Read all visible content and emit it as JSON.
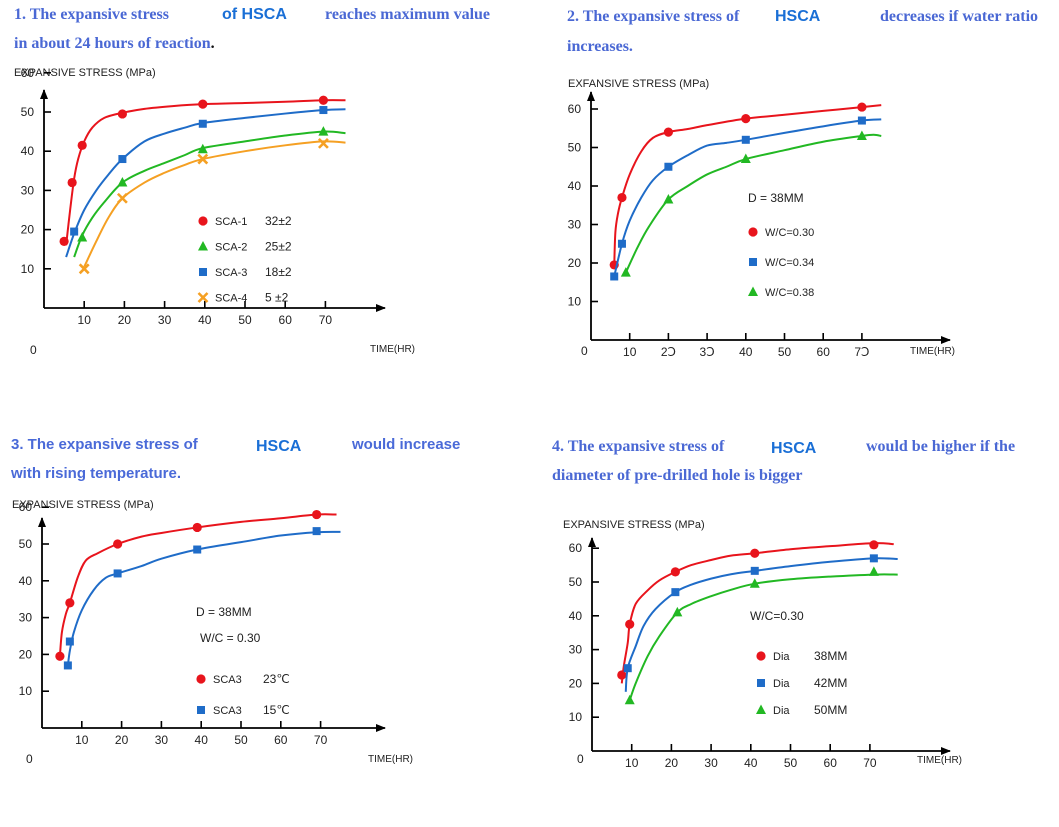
{
  "sections": [
    {
      "heading": {
        "part1": "1. The expansive stress",
        "hsca": "of HSCA",
        "part2": "reaches maximum value",
        "line2": "in about 24 hours of reaction",
        "line2_end": "."
      }
    },
    {
      "heading": {
        "part1": "2. The expansive stress of",
        "hsca": "HSCA",
        "part2": "decreases if water ratio",
        "line2": "increases."
      }
    },
    {
      "heading": {
        "part1": "3. The expansive stress of",
        "hsca": "HSCA",
        "part2": "would increase",
        "line2": "with rising temperature."
      }
    },
    {
      "heading": {
        "part1": "4. The expansive stress of",
        "hsca": "HSCA",
        "part2": "would be higher if the",
        "line2": "diameter of pre-drilled hole is bigger"
      }
    }
  ],
  "colors": {
    "red": "#e8141c",
    "blue": "#1f6cc8",
    "green": "#22b823",
    "orange": "#f5a023",
    "heading": "#4a68d4",
    "hsca": "#1a6fd6"
  },
  "chart_data": [
    {
      "type": "line",
      "title": "1. The expansive stress of HSCA reaches maximum value in about 24 hours of reaction.",
      "ylabel": "EXPANSIVE STRESS",
      "ylabel_unit": "(MPa)",
      "xlabel": "TIME(HR)",
      "origin_label": "0",
      "xticks": [
        10,
        20,
        30,
        40,
        50,
        60,
        70
      ],
      "yticks": [
        10,
        20,
        30,
        40,
        50,
        60
      ],
      "xlim": [
        0,
        80
      ],
      "ylim": [
        0,
        62
      ],
      "grid": false,
      "notes": [],
      "series": [
        {
          "name": "SCA-1",
          "legend_value": "32±2",
          "color": "red",
          "marker": "circle",
          "x": [
            5,
            7,
            9.5,
            19.5,
            39.5,
            69.5
          ],
          "y": [
            17,
            32,
            41.5,
            49.5,
            52,
            53
          ],
          "curve": [
            [
              5.5,
              16
            ],
            [
              6.5,
              25
            ],
            [
              7.5,
              33
            ],
            [
              8.5,
              38
            ],
            [
              10,
              42.5
            ],
            [
              12,
              46
            ],
            [
              15,
              48.5
            ],
            [
              19.5,
              49.8
            ],
            [
              25,
              50.8
            ],
            [
              32,
              51.5
            ],
            [
              39.5,
              52
            ],
            [
              50,
              52.3
            ],
            [
              60,
              52.6
            ],
            [
              69.5,
              53
            ],
            [
              75,
              53
            ]
          ]
        },
        {
          "name": "SCA-2",
          "legend_value": "25±2",
          "color": "green",
          "marker": "triangle",
          "x": [
            9.5,
            19.5,
            39.5,
            69.5
          ],
          "y": [
            18,
            32,
            40.5,
            45
          ],
          "curve": [
            [
              7.5,
              13
            ],
            [
              9.5,
              18.5
            ],
            [
              12,
              23
            ],
            [
              15,
              27
            ],
            [
              19.5,
              32
            ],
            [
              25,
              35
            ],
            [
              30,
              37
            ],
            [
              35,
              39
            ],
            [
              39.5,
              40.8
            ],
            [
              50,
              42.5
            ],
            [
              60,
              44
            ],
            [
              69.5,
              45
            ],
            [
              75,
              44.6
            ]
          ]
        },
        {
          "name": "SCA-3",
          "legend_value": "18±2",
          "color": "blue",
          "marker": "square",
          "x": [
            7.5,
            19.5,
            39.5,
            69.5
          ],
          "y": [
            19.5,
            38,
            47,
            50.5
          ],
          "curve": [
            [
              5.5,
              13
            ],
            [
              7.5,
              19
            ],
            [
              10,
              25
            ],
            [
              13,
              30
            ],
            [
              16,
              34
            ],
            [
              19.5,
              38
            ],
            [
              25,
              42.5
            ],
            [
              30,
              44.5
            ],
            [
              35,
              46
            ],
            [
              39.5,
              47.2
            ],
            [
              50,
              48.5
            ],
            [
              60,
              49.6
            ],
            [
              69.5,
              50.5
            ],
            [
              75,
              50.7
            ]
          ]
        },
        {
          "name": "SCA-4",
          "legend_value": "5 ±2",
          "color": "orange",
          "marker": "x",
          "x": [
            10,
            19.5,
            39.5,
            69.5
          ],
          "y": [
            10,
            28,
            38,
            42
          ],
          "curve": [
            [
              10,
              10.5
            ],
            [
              13,
              17
            ],
            [
              16,
              23
            ],
            [
              19.5,
              28
            ],
            [
              25,
              32
            ],
            [
              30,
              34.5
            ],
            [
              35,
              36.5
            ],
            [
              39.5,
              38
            ],
            [
              50,
              40
            ],
            [
              60,
              41.5
            ],
            [
              69.5,
              42.5
            ],
            [
              75,
              42.2
            ]
          ]
        }
      ]
    },
    {
      "type": "line",
      "title": "2. The expansive stress of HSCA decreases if water ratio increases.",
      "ylabel": "EXFANSIVE STRESS",
      "ylabel_unit": "(MPa)",
      "xlabel": "TIME(HR)",
      "origin_label": "0",
      "xticks": [
        10,
        20,
        30,
        40,
        50,
        60,
        70
      ],
      "xtick_labels": [
        "10",
        "2Ↄ",
        "3Ↄ",
        "40",
        "50",
        "60",
        "7Ↄ"
      ],
      "yticks": [
        10,
        20,
        30,
        40,
        50,
        60
      ],
      "xlim": [
        0,
        80
      ],
      "ylim": [
        0,
        63
      ],
      "grid": false,
      "notes": [
        "D = 38MM"
      ],
      "series": [
        {
          "name": "W/C=0.30",
          "color": "red",
          "marker": "circle",
          "x": [
            6,
            8,
            20,
            40,
            70
          ],
          "y": [
            19.5,
            37,
            54,
            57.5,
            60.5
          ],
          "curve": [
            [
              6,
              19
            ],
            [
              6.3,
              28
            ],
            [
              7,
              33
            ],
            [
              8,
              37
            ],
            [
              10,
              43
            ],
            [
              13,
              49
            ],
            [
              16,
              52.5
            ],
            [
              20,
              54
            ],
            [
              25,
              54.8
            ],
            [
              30,
              55.8
            ],
            [
              40,
              57.5
            ],
            [
              50,
              58.5
            ],
            [
              60,
              59.5
            ],
            [
              70,
              60.5
            ],
            [
              75,
              61
            ]
          ]
        },
        {
          "name": "W/C=0.34",
          "color": "blue",
          "marker": "square",
          "x": [
            6,
            8,
            20,
            40,
            70
          ],
          "y": [
            16.5,
            25,
            45,
            52,
            57
          ],
          "curve": [
            [
              6,
              16.5
            ],
            [
              8,
              25
            ],
            [
              10,
              31
            ],
            [
              13,
              37
            ],
            [
              16,
              41.5
            ],
            [
              20,
              45
            ],
            [
              25,
              48
            ],
            [
              30,
              50.5
            ],
            [
              35,
              51.2
            ],
            [
              40,
              52
            ],
            [
              50,
              53.8
            ],
            [
              60,
              55.5
            ],
            [
              70,
              57
            ],
            [
              75,
              57.3
            ]
          ]
        },
        {
          "name": "W/C=0.38",
          "color": "green",
          "marker": "triangle",
          "x": [
            9,
            20,
            40,
            70
          ],
          "y": [
            17.5,
            36.5,
            47,
            53
          ],
          "curve": [
            [
              9,
              17.5
            ],
            [
              12,
              24
            ],
            [
              15,
              29.5
            ],
            [
              20,
              36.5
            ],
            [
              25,
              40
            ],
            [
              30,
              43
            ],
            [
              35,
              45
            ],
            [
              40,
              47
            ],
            [
              50,
              49.3
            ],
            [
              60,
              51.5
            ],
            [
              70,
              53
            ],
            [
              73,
              53.3
            ],
            [
              75,
              53
            ]
          ]
        }
      ]
    },
    {
      "type": "line",
      "title": "3. The expansive stress of HSCA would increase with rising temperature.",
      "ylabel": "EXPANSIVE STRESS",
      "ylabel_unit": "(MPa)",
      "xlabel": "TIME(HR)",
      "origin_label": "0",
      "xticks": [
        10,
        20,
        30,
        40,
        50,
        60,
        70
      ],
      "yticks": [
        10,
        20,
        30,
        40,
        50,
        60
      ],
      "xlim": [
        0,
        80
      ],
      "ylim": [
        0,
        62
      ],
      "grid": false,
      "notes": [
        "D = 38MM",
        "W/C = 0.30"
      ],
      "series": [
        {
          "name": "SCA3",
          "legend_value": "23℃",
          "color": "red",
          "marker": "circle",
          "x": [
            4.5,
            7,
            19,
            39,
            69
          ],
          "y": [
            19.5,
            34,
            50,
            54.5,
            58
          ],
          "curve": [
            [
              4.5,
              19.5
            ],
            [
              5,
              26
            ],
            [
              6,
              31
            ],
            [
              7,
              34
            ],
            [
              9,
              41
            ],
            [
              11,
              45.5
            ],
            [
              14,
              47.5
            ],
            [
              19,
              50
            ],
            [
              25,
              52
            ],
            [
              30,
              53
            ],
            [
              39,
              54.5
            ],
            [
              50,
              56
            ],
            [
              60,
              57
            ],
            [
              69,
              58
            ],
            [
              74,
              58
            ]
          ]
        },
        {
          "name": "SCA3",
          "legend_value": "15℃",
          "color": "blue",
          "marker": "square",
          "x": [
            6.5,
            7,
            19,
            39,
            69
          ],
          "y": [
            17,
            23.5,
            42,
            48.5,
            53.5
          ],
          "curve": [
            [
              6.5,
              17
            ],
            [
              7,
              21
            ],
            [
              8,
              26
            ],
            [
              10,
              32
            ],
            [
              13,
              37.5
            ],
            [
              16,
              40.8
            ],
            [
              19,
              42
            ],
            [
              25,
              44
            ],
            [
              30,
              46
            ],
            [
              39,
              48.5
            ],
            [
              50,
              50.5
            ],
            [
              60,
              52.3
            ],
            [
              69,
              53.2
            ],
            [
              75,
              53.3
            ]
          ]
        }
      ]
    },
    {
      "type": "line",
      "title": "4. The expansive stress of HSCA would be higher if the diameter of pre-drilled hole is bigger",
      "ylabel": "EXPANSIVE STRESS",
      "ylabel_unit": "(MPa)",
      "xlabel": "TIME(HR)",
      "origin_label": "0",
      "xticks": [
        10,
        20,
        30,
        40,
        50,
        60,
        70
      ],
      "yticks": [
        10,
        20,
        30,
        40,
        50,
        60
      ],
      "xlim": [
        0,
        80
      ],
      "ylim": [
        0,
        62
      ],
      "grid": false,
      "notes": [
        "W/C=0.30"
      ],
      "series": [
        {
          "name": "Dia",
          "legend_value": "38MM",
          "color": "red",
          "marker": "circle",
          "x": [
            7.5,
            9.5,
            21,
            41,
            71
          ],
          "y": [
            22.5,
            37.5,
            53,
            58.5,
            61
          ],
          "curve": [
            [
              7.5,
              20
            ],
            [
              8,
              25
            ],
            [
              9,
              32
            ],
            [
              9.5,
              37.5
            ],
            [
              11,
              43.5
            ],
            [
              14,
              47.5
            ],
            [
              17,
              50.5
            ],
            [
              21,
              53
            ],
            [
              25,
              55
            ],
            [
              30,
              56.5
            ],
            [
              35,
              57.8
            ],
            [
              41,
              58.5
            ],
            [
              50,
              59.7
            ],
            [
              60,
              60.6
            ],
            [
              71,
              61.5
            ],
            [
              76,
              61.2
            ]
          ]
        },
        {
          "name": "Dia",
          "legend_value": "42MM",
          "color": "blue",
          "marker": "square",
          "x": [
            9,
            21,
            41,
            71
          ],
          "y": [
            24.5,
            47,
            53.3,
            57
          ],
          "curve": [
            [
              8.5,
              17.5
            ],
            [
              9,
              24.5
            ],
            [
              11,
              31
            ],
            [
              13,
              37
            ],
            [
              16,
              42
            ],
            [
              21,
              47
            ],
            [
              25,
              49.2
            ],
            [
              30,
              51
            ],
            [
              35,
              52.3
            ],
            [
              41,
              53.3
            ],
            [
              50,
              54.7
            ],
            [
              60,
              56
            ],
            [
              71,
              57
            ],
            [
              77,
              56.8
            ]
          ]
        },
        {
          "name": "Dia",
          "legend_value": "50MM",
          "color": "green",
          "marker": "triangle",
          "x": [
            9.5,
            21.5,
            41,
            71
          ],
          "y": [
            15,
            41,
            49.5,
            53
          ],
          "curve": [
            [
              9.5,
              15
            ],
            [
              11,
              20
            ],
            [
              14,
              28
            ],
            [
              17,
              34
            ],
            [
              21.5,
              41
            ],
            [
              25,
              43.5
            ],
            [
              30,
              45.8
            ],
            [
              35,
              47.7
            ],
            [
              41,
              49.5
            ],
            [
              50,
              50.8
            ],
            [
              60,
              51.6
            ],
            [
              71,
              52.2
            ],
            [
              77,
              52.2
            ]
          ]
        }
      ]
    }
  ]
}
